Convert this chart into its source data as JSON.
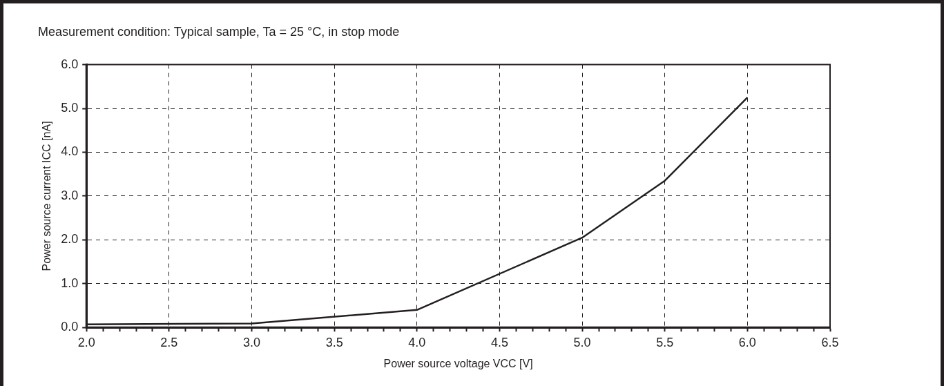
{
  "chart_data": {
    "type": "line",
    "title": "Measurement condition: Typical sample, Ta = 25 °C, in stop mode",
    "xlabel": "Power source voltage VCC [V]",
    "ylabel": "Power source current ICC [nA]",
    "x": [
      2.0,
      3.0,
      4.0,
      5.0,
      5.5,
      6.0
    ],
    "series": [
      {
        "color": "#231f20",
        "values": [
          0.07,
          0.09,
          0.4,
          2.05,
          3.35,
          5.25
        ]
      }
    ],
    "xlim": [
      2.0,
      6.5
    ],
    "xticks": [
      {
        "value": 2.0,
        "label": "2.0"
      },
      {
        "value": 2.1,
        "label": null
      },
      {
        "value": 2.2,
        "label": null
      },
      {
        "value": 2.3,
        "label": null
      },
      {
        "value": 2.4,
        "label": null
      },
      {
        "value": 2.5,
        "label": "2.5"
      },
      {
        "value": 2.6,
        "label": null
      },
      {
        "value": 2.7,
        "label": null
      },
      {
        "value": 2.8,
        "label": null
      },
      {
        "value": 2.9,
        "label": null
      },
      {
        "value": 3.0,
        "label": "3.0"
      },
      {
        "value": 3.1,
        "label": null
      },
      {
        "value": 3.2,
        "label": null
      },
      {
        "value": 3.3,
        "label": null
      },
      {
        "value": 3.4,
        "label": null
      },
      {
        "value": 3.5,
        "label": "3.5"
      },
      {
        "value": 3.6,
        "label": null
      },
      {
        "value": 3.7,
        "label": null
      },
      {
        "value": 3.8,
        "label": null
      },
      {
        "value": 3.9,
        "label": null
      },
      {
        "value": 4.0,
        "label": "4.0"
      },
      {
        "value": 4.1,
        "label": null
      },
      {
        "value": 4.2,
        "label": null
      },
      {
        "value": 4.3,
        "label": null
      },
      {
        "value": 4.4,
        "label": null
      },
      {
        "value": 4.5,
        "label": "4.5"
      },
      {
        "value": 4.6,
        "label": null
      },
      {
        "value": 4.7,
        "label": null
      },
      {
        "value": 4.8,
        "label": null
      },
      {
        "value": 4.9,
        "label": null
      },
      {
        "value": 5.0,
        "label": "5.0"
      },
      {
        "value": 5.1,
        "label": null
      },
      {
        "value": 5.2,
        "label": null
      },
      {
        "value": 5.3,
        "label": null
      },
      {
        "value": 5.4,
        "label": null
      },
      {
        "value": 5.5,
        "label": "5.5"
      },
      {
        "value": 5.6,
        "label": null
      },
      {
        "value": 5.7,
        "label": null
      },
      {
        "value": 5.8,
        "label": null
      },
      {
        "value": 5.9,
        "label": null
      },
      {
        "value": 6.0,
        "label": "6.0"
      },
      {
        "value": 6.1,
        "label": null
      },
      {
        "value": 6.2,
        "label": null
      },
      {
        "value": 6.3,
        "label": null
      },
      {
        "value": 6.4,
        "label": null
      },
      {
        "value": 6.5,
        "label": "6.5"
      }
    ],
    "ylim": [
      0.0,
      6.0
    ],
    "yticks": [
      {
        "value": 0,
        "label": "0.0"
      },
      {
        "value": 1,
        "label": "1.0"
      },
      {
        "value": 2,
        "label": "2.0"
      },
      {
        "value": 3,
        "label": "3.0"
      },
      {
        "value": 4,
        "label": "4.0"
      },
      {
        "value": 5,
        "label": "5.0"
      },
      {
        "value": 6,
        "label": "6.0"
      }
    ],
    "grid": true,
    "legend": false,
    "marker": "none",
    "line_style": "solid"
  }
}
